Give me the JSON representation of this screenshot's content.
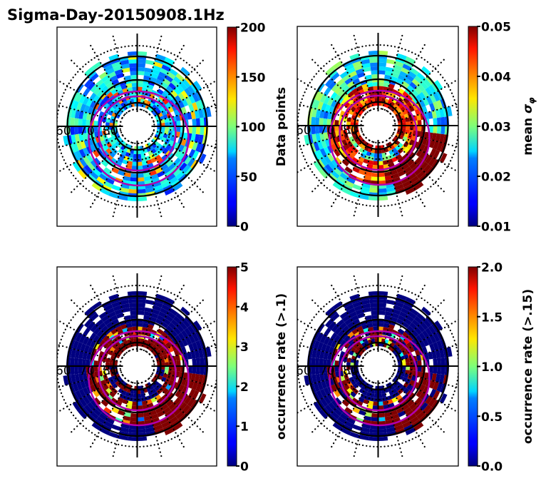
{
  "chart_data": [
    {
      "type": "heatmap",
      "projection": "polar (magnetic latitude / local time)",
      "title": "Sigma-Day-20150908.1Hz",
      "colormap": "jet",
      "colorbar": {
        "label": "Data points",
        "range": [
          0,
          200
        ],
        "ticks": [
          "0",
          "50",
          "100",
          "150",
          "200"
        ]
      },
      "radial_labels": [
        "60",
        "70",
        "80"
      ],
      "grid": true,
      "overlays": [
        "magenta auroral oval (2 contours)",
        "black latitude circles",
        "dotted grid"
      ],
      "dominant_values": "mostly 20-90 counts, scattered 100-170"
    },
    {
      "type": "heatmap",
      "projection": "polar (magnetic latitude / local time)",
      "colormap": "jet",
      "colorbar": {
        "label": "mean σφ",
        "range": [
          0.01,
          0.05
        ],
        "ticks": [
          "0.01",
          "0.02",
          "0.03",
          "0.04",
          "0.05"
        ]
      },
      "radial_labels": [
        "60",
        "70",
        "80"
      ],
      "grid": true,
      "dominant_values": "outer ring ~0.02-0.03; inner auroral region and dawn sector ≥0.05"
    },
    {
      "type": "heatmap",
      "projection": "polar (magnetic latitude / local time)",
      "colormap": "jet",
      "colorbar": {
        "label": "occurrence rate (>.1)",
        "range": [
          0,
          5
        ],
        "ticks": [
          "0",
          "1",
          "2",
          "3",
          "4",
          "5"
        ]
      },
      "radial_labels": [
        "60",
        "70",
        "80"
      ],
      "grid": true,
      "dominant_values": "mostly 0; auroral oval and dawn sector ≥5"
    },
    {
      "type": "heatmap",
      "projection": "polar (magnetic latitude / local time)",
      "colormap": "jet",
      "colorbar": {
        "label": "occurrence rate (>.15)",
        "range": [
          0.0,
          2.0
        ],
        "ticks": [
          "0.0",
          "0.5",
          "1.0",
          "1.5",
          "2.0"
        ]
      },
      "radial_labels": [
        "60",
        "70",
        "80"
      ],
      "grid": true,
      "dominant_values": "mostly 0; auroral oval and dawn sector ≥2.0"
    }
  ],
  "figure": {
    "title": "Sigma-Day-20150908.1Hz"
  },
  "colors": {
    "oval": "#b000b0",
    "grid": "#000000"
  }
}
